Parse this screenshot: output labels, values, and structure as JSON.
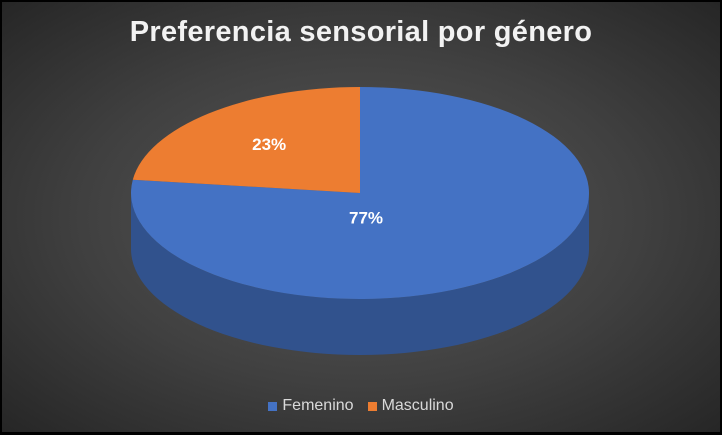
{
  "chart_data": {
    "type": "pie",
    "title": "Preferencia sensorial por género",
    "slices": [
      {
        "label": "Femenino",
        "value": 77,
        "data_label": "77%",
        "color": "#4472C4"
      },
      {
        "label": "Masculino",
        "value": 23,
        "data_label": "23%",
        "color": "#ED7D31"
      }
    ],
    "legend": "bottom",
    "style": "3d"
  }
}
